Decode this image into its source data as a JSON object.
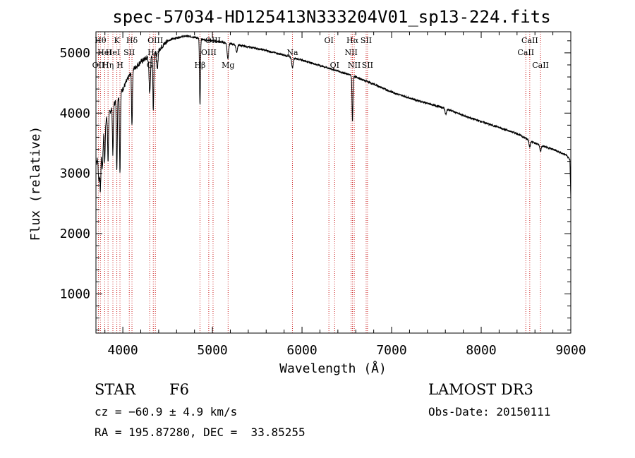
{
  "chart_data": {
    "type": "line",
    "title": "spec-57034-HD125413N333204V01_sp13-224.fits",
    "xlabel": "Wavelength (Å)",
    "ylabel": "Flux (relative)",
    "xlim": [
      3700,
      9000
    ],
    "ylim": [
      350,
      5350
    ],
    "x_ticks": [
      4000,
      5000,
      6000,
      7000,
      8000,
      9000
    ],
    "y_ticks": [
      1000,
      2000,
      3000,
      4000,
      5000
    ],
    "continuum": [
      [
        3700,
        3150
      ],
      [
        3800,
        3850
      ],
      [
        3900,
        4150
      ],
      [
        4000,
        4400
      ],
      [
        4100,
        4700
      ],
      [
        4200,
        4850
      ],
      [
        4300,
        4950
      ],
      [
        4400,
        5050
      ],
      [
        4500,
        5200
      ],
      [
        4600,
        5250
      ],
      [
        4700,
        5280
      ],
      [
        4800,
        5260
      ],
      [
        4900,
        5220
      ],
      [
        5000,
        5200
      ],
      [
        5100,
        5180
      ],
      [
        5200,
        5150
      ],
      [
        5400,
        5100
      ],
      [
        5600,
        5040
      ],
      [
        5800,
        4960
      ],
      [
        6000,
        4880
      ],
      [
        6200,
        4790
      ],
      [
        6400,
        4700
      ],
      [
        6600,
        4600
      ],
      [
        6800,
        4480
      ],
      [
        7000,
        4350
      ],
      [
        7200,
        4250
      ],
      [
        7400,
        4160
      ],
      [
        7600,
        4080
      ],
      [
        7800,
        3960
      ],
      [
        8000,
        3860
      ],
      [
        8200,
        3760
      ],
      [
        8400,
        3660
      ],
      [
        8600,
        3500
      ],
      [
        8800,
        3400
      ],
      [
        8950,
        3300
      ],
      [
        9000,
        3200
      ]
    ],
    "absorption_lines": [
      {
        "w": 3734,
        "depth": 500
      },
      {
        "w": 3750,
        "depth": 700
      },
      {
        "w": 3771,
        "depth": 550
      },
      {
        "w": 3798,
        "depth": 650
      },
      {
        "w": 3835,
        "depth": 750
      },
      {
        "w": 3889,
        "depth": 800
      },
      {
        "w": 3933,
        "depth": 1200
      },
      {
        "w": 3968,
        "depth": 1300
      },
      {
        "w": 4102,
        "depth": 900
      },
      {
        "w": 4300,
        "depth": 600
      },
      {
        "w": 4340,
        "depth": 950
      },
      {
        "w": 4384,
        "depth": 300
      },
      {
        "w": 4861,
        "depth": 1100
      },
      {
        "w": 5172,
        "depth": 250
      },
      {
        "w": 5270,
        "depth": 120
      },
      {
        "w": 5893,
        "depth": 170
      },
      {
        "w": 6563,
        "depth": 750
      },
      {
        "w": 7605,
        "depth": 100
      },
      {
        "w": 8542,
        "depth": 100
      },
      {
        "w": 8662,
        "depth": 100
      }
    ],
    "marker_lines": [
      {
        "w": 3727,
        "label": "OII",
        "row": 3
      },
      {
        "w": 3750,
        "label": "Hθ",
        "row": 1
      },
      {
        "w": 3798,
        "label": "HeI",
        "row": 2
      },
      {
        "w": 3835,
        "label": "Hη",
        "row": 3
      },
      {
        "w": 3889,
        "label": "HeI",
        "row": 2
      },
      {
        "w": 3933,
        "label": "K",
        "row": 1
      },
      {
        "w": 3968,
        "label": "H",
        "row": 3
      },
      {
        "w": 4072,
        "label": "SII",
        "row": 2
      },
      {
        "w": 4102,
        "label": "Hδ",
        "row": 1
      },
      {
        "w": 4300,
        "label": "G",
        "row": 3
      },
      {
        "w": 4340,
        "label": "Hγ",
        "row": 2
      },
      {
        "w": 4363,
        "label": "OIII",
        "row": 1
      },
      {
        "w": 4861,
        "label": "Hβ",
        "row": 3
      },
      {
        "w": 4959,
        "label": "OIII",
        "row": 2
      },
      {
        "w": 5007,
        "label": "OIII",
        "row": 1
      },
      {
        "w": 5175,
        "label": "Mg",
        "row": 3
      },
      {
        "w": 5893,
        "label": "Na",
        "row": 2
      },
      {
        "w": 6300,
        "label": "OI",
        "row": 1
      },
      {
        "w": 6364,
        "label": "OI",
        "row": 3
      },
      {
        "w": 6548,
        "label": "NII",
        "row": 2
      },
      {
        "w": 6563,
        "label": "Hα",
        "row": 1
      },
      {
        "w": 6583,
        "label": "NII",
        "row": 3
      },
      {
        "w": 6716,
        "label": "SII",
        "row": 1
      },
      {
        "w": 6731,
        "label": "SII",
        "row": 3
      },
      {
        "w": 8498,
        "label": "CaII",
        "row": 2
      },
      {
        "w": 8542,
        "label": "CaII",
        "row": 1
      },
      {
        "w": 8662,
        "label": "CaII",
        "row": 3
      }
    ],
    "marker_color": "#cc2222",
    "line_color": "#000000"
  },
  "info": {
    "object_type": "STAR",
    "subclass": "F6",
    "survey": "LAMOST DR3",
    "cz": "cz = −60.9 ± 4.9 km/s",
    "obs_date": "Obs-Date: 20150111",
    "coords": "RA = 195.87280, DEC =  33.85255"
  }
}
